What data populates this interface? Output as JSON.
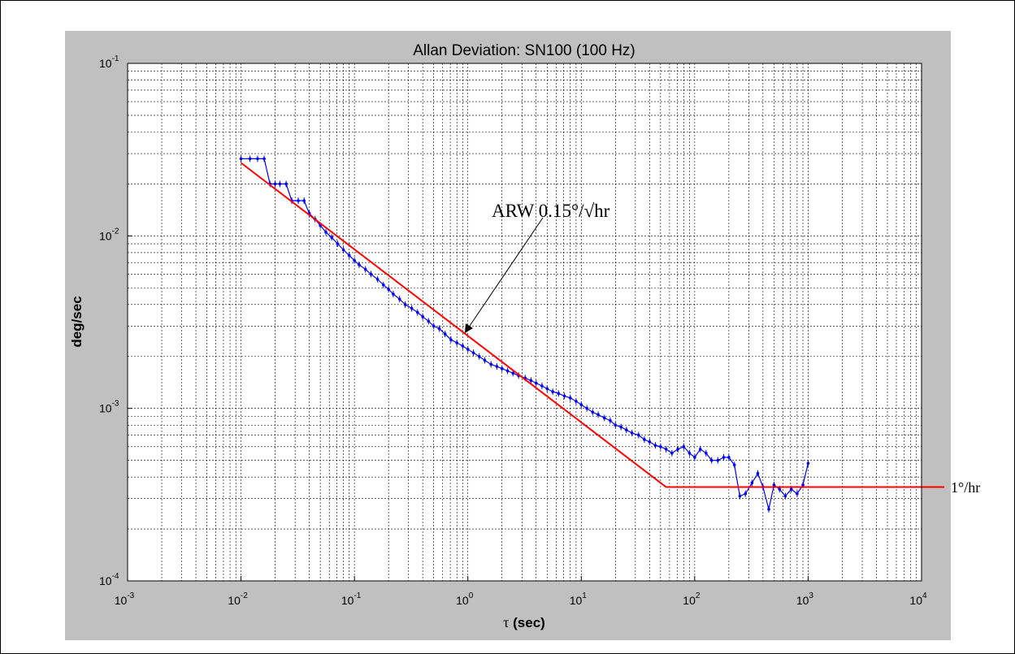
{
  "chart_data": {
    "type": "line",
    "title": "Allan Deviation: SN100 (100 Hz)",
    "xlabel_symbol": "τ",
    "xlabel_unit": "(sec)",
    "ylabel": "deg/sec",
    "xscale": "log",
    "yscale": "log",
    "xlim": [
      0.001,
      10000
    ],
    "ylim": [
      0.0001,
      0.1
    ],
    "grid": true,
    "x_ticks": [
      {
        "base": "10",
        "exp": "-3"
      },
      {
        "base": "10",
        "exp": "-2"
      },
      {
        "base": "10",
        "exp": "-1"
      },
      {
        "base": "10",
        "exp": "0"
      },
      {
        "base": "10",
        "exp": "1"
      },
      {
        "base": "10",
        "exp": "2"
      },
      {
        "base": "10",
        "exp": "3"
      },
      {
        "base": "10",
        "exp": "4"
      }
    ],
    "y_ticks": [
      {
        "base": "10",
        "exp": "-4"
      },
      {
        "base": "10",
        "exp": "-3"
      },
      {
        "base": "10",
        "exp": "-2"
      },
      {
        "base": "10",
        "exp": "-1"
      }
    ],
    "series": [
      {
        "color": "#0000ff",
        "marker": "dot-with-error-bars",
        "x": [
          0.01,
          0.012,
          0.014,
          0.016,
          0.018,
          0.02,
          0.022,
          0.025,
          0.028,
          0.032,
          0.036,
          0.04,
          0.045,
          0.05,
          0.056,
          0.063,
          0.071,
          0.08,
          0.09,
          0.1,
          0.11,
          0.125,
          0.14,
          0.16,
          0.18,
          0.2,
          0.22,
          0.25,
          0.28,
          0.32,
          0.36,
          0.4,
          0.45,
          0.5,
          0.56,
          0.63,
          0.71,
          0.8,
          0.9,
          1.0,
          1.12,
          1.26,
          1.41,
          1.6,
          1.8,
          2.0,
          2.24,
          2.5,
          2.8,
          3.2,
          3.6,
          4.0,
          4.5,
          5.0,
          5.6,
          6.3,
          7.1,
          8.0,
          9.0,
          10,
          11.2,
          12.6,
          14.1,
          16,
          18,
          20,
          22.4,
          25,
          28,
          32,
          36,
          40,
          45,
          50,
          56,
          63,
          71,
          80,
          90,
          100,
          112,
          126,
          141,
          160,
          180,
          200,
          224,
          250,
          280,
          320,
          360,
          400,
          450,
          500,
          560,
          630,
          710,
          800,
          900,
          1000
        ],
        "y": [
          0.028,
          0.028,
          0.028,
          0.028,
          0.02,
          0.02,
          0.02,
          0.02,
          0.016,
          0.016,
          0.016,
          0.0135,
          0.0125,
          0.0115,
          0.0105,
          0.0098,
          0.009,
          0.0083,
          0.0077,
          0.0072,
          0.0068,
          0.0064,
          0.006,
          0.0056,
          0.0052,
          0.0049,
          0.0046,
          0.0043,
          0.004,
          0.0038,
          0.0036,
          0.0034,
          0.0032,
          0.003,
          0.0029,
          0.0027,
          0.0025,
          0.0024,
          0.0023,
          0.0022,
          0.0021,
          0.002,
          0.0019,
          0.0018,
          0.00175,
          0.0017,
          0.00165,
          0.0016,
          0.00155,
          0.0015,
          0.00145,
          0.0014,
          0.00135,
          0.0013,
          0.00125,
          0.00122,
          0.00118,
          0.00115,
          0.0011,
          0.00105,
          0.001,
          0.00095,
          0.00092,
          0.00088,
          0.00085,
          0.0008,
          0.00078,
          0.00075,
          0.00072,
          0.0007,
          0.00066,
          0.00064,
          0.00061,
          0.0006,
          0.00058,
          0.00055,
          0.00058,
          0.0006,
          0.00055,
          0.00052,
          0.00058,
          0.00055,
          0.0005,
          0.0005,
          0.00052,
          0.00052,
          0.00047,
          0.00031,
          0.00032,
          0.00037,
          0.00042,
          0.00035,
          0.00026,
          0.00036,
          0.00034,
          0.00031,
          0.00034,
          0.00032,
          0.00036,
          0.00048
        ]
      },
      {
        "color": "#ff0000",
        "marker": "none",
        "x": [
          0.01,
          56,
          10000
        ],
        "y": [
          0.0265,
          0.00035,
          0.00035
        ]
      }
    ],
    "annotations": [
      {
        "text": "ARW 0.15°/√hr",
        "points_to_x": 1.0,
        "points_to_y": 0.0029
      },
      {
        "text": "1°/hr"
      }
    ]
  }
}
